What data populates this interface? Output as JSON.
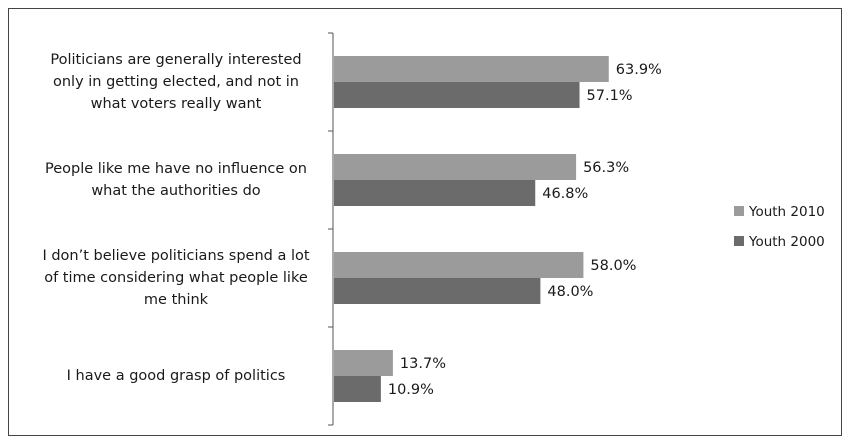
{
  "chart_data": {
    "type": "bar",
    "orientation": "horizontal",
    "title": "",
    "xlabel": "",
    "ylabel": "",
    "categories": [
      [
        "Politicians are generally interested",
        "only in getting elected, and not in",
        "what voters really want"
      ],
      [
        "People like me have no influence on",
        "what the authorities do"
      ],
      [
        "I don’t believe politicians spend a lot",
        "of time considering what people like",
        "me think"
      ],
      [
        "I have a good grasp of politics"
      ]
    ],
    "series": [
      {
        "name": "Youth 2010",
        "color": "#9b9b9b",
        "values": [
          63.9,
          56.3,
          58.0,
          13.7
        ],
        "labels": [
          "63.9%",
          "56.3%",
          "58.0%",
          "13.7%"
        ]
      },
      {
        "name": "Youth 2000",
        "color": "#6b6b6b",
        "values": [
          57.1,
          46.8,
          48.0,
          10.9
        ],
        "labels": [
          "57.1%",
          "46.8%",
          "48.0%",
          "10.9%"
        ]
      }
    ],
    "xlim": [
      0,
      100
    ],
    "grid": false,
    "legend_position": "right"
  }
}
